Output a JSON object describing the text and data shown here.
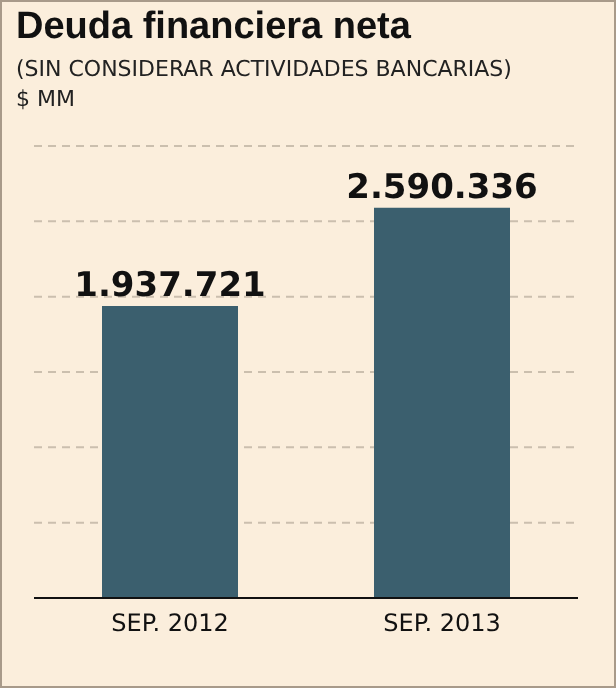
{
  "chart_data": {
    "type": "bar",
    "title": "Deuda financiera neta",
    "subtitle": "(SIN CONSIDERAR ACTIVIDADES BANCARIAS)",
    "ylabel": "$ MM",
    "categories": [
      "SEP. 2012",
      "SEP. 2013"
    ],
    "values": [
      1937721,
      2590336
    ],
    "value_labels": [
      "1.937.721",
      "2.590.336"
    ],
    "color": "#3b5f6e",
    "ylim": [
      0,
      3000000
    ],
    "yticks": [
      {
        "value": 0,
        "label": null
      },
      {
        "value": 500000,
        "label": null
      },
      {
        "value": 1000000,
        "label": null
      },
      {
        "value": 1500000,
        "label": null
      },
      {
        "value": 2000000,
        "label": null
      },
      {
        "value": 2500000,
        "label": null
      },
      {
        "value": 3000000,
        "label": null
      }
    ],
    "grid": "y",
    "tick_labels": "x"
  }
}
